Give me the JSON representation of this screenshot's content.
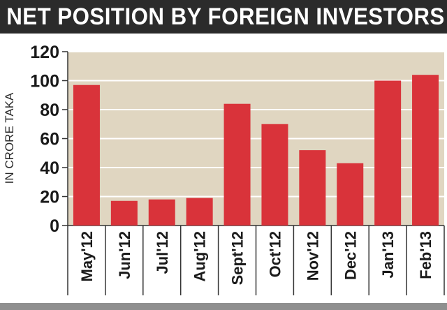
{
  "header": {
    "title": "NET POSITION BY FOREIGN INVESTORS"
  },
  "colors": {
    "bar": "#d9333a",
    "plot_bg": "#e0d6c1",
    "grid": "#ffffff",
    "title_bg": "#2b2b2b",
    "text": "#1a1a1a"
  },
  "chart_data": {
    "type": "bar",
    "title": "NET POSITION BY FOREIGN INVESTORS",
    "xlabel": "",
    "ylabel": "IN CRORE TAKA",
    "categories": [
      "May'12",
      "Jun'12",
      "Jul'12",
      "Aug'12",
      "Sept'12",
      "Oct'12",
      "Nov'12",
      "Dec'12",
      "Jan'13",
      "Feb'13"
    ],
    "values": [
      97,
      17,
      18,
      19,
      84,
      70,
      52,
      43,
      100,
      104
    ],
    "ylim": [
      0,
      120
    ],
    "yticks": [
      0,
      20,
      40,
      60,
      80,
      100,
      120
    ],
    "grid": true,
    "legend": "none"
  }
}
